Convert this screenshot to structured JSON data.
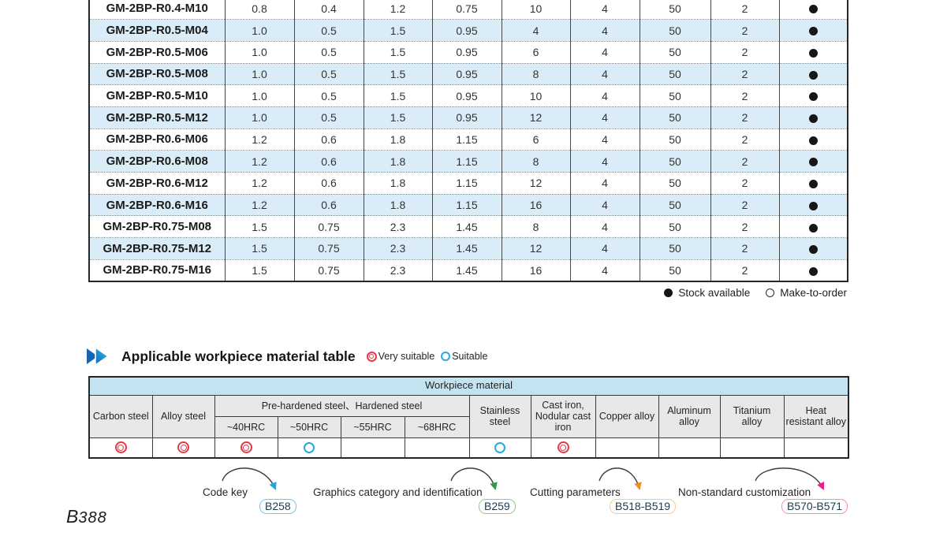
{
  "colors": {
    "very_suitable": "#e73948",
    "suitable": "#29a9e0",
    "row_alt": "#d9ecf7",
    "material_title_bg": "#c2e3ef",
    "material_head_bg": "#e8e8e9",
    "stock_dot": "#161616"
  },
  "spec_table": {
    "rows": [
      {
        "model": "GM-2BP-R0.4-M10",
        "values": [
          "0.8",
          "0.4",
          "1.2",
          "0.75",
          "10",
          "4",
          "50",
          "2"
        ],
        "stock": "available"
      },
      {
        "model": "GM-2BP-R0.5-M04",
        "values": [
          "1.0",
          "0.5",
          "1.5",
          "0.95",
          "4",
          "4",
          "50",
          "2"
        ],
        "stock": "available"
      },
      {
        "model": "GM-2BP-R0.5-M06",
        "values": [
          "1.0",
          "0.5",
          "1.5",
          "0.95",
          "6",
          "4",
          "50",
          "2"
        ],
        "stock": "available"
      },
      {
        "model": "GM-2BP-R0.5-M08",
        "values": [
          "1.0",
          "0.5",
          "1.5",
          "0.95",
          "8",
          "4",
          "50",
          "2"
        ],
        "stock": "available"
      },
      {
        "model": "GM-2BP-R0.5-M10",
        "values": [
          "1.0",
          "0.5",
          "1.5",
          "0.95",
          "10",
          "4",
          "50",
          "2"
        ],
        "stock": "available"
      },
      {
        "model": "GM-2BP-R0.5-M12",
        "values": [
          "1.0",
          "0.5",
          "1.5",
          "0.95",
          "12",
          "4",
          "50",
          "2"
        ],
        "stock": "available"
      },
      {
        "model": "GM-2BP-R0.6-M06",
        "values": [
          "1.2",
          "0.6",
          "1.8",
          "1.15",
          "6",
          "4",
          "50",
          "2"
        ],
        "stock": "available"
      },
      {
        "model": "GM-2BP-R0.6-M08",
        "values": [
          "1.2",
          "0.6",
          "1.8",
          "1.15",
          "8",
          "4",
          "50",
          "2"
        ],
        "stock": "available"
      },
      {
        "model": "GM-2BP-R0.6-M12",
        "values": [
          "1.2",
          "0.6",
          "1.8",
          "1.15",
          "12",
          "4",
          "50",
          "2"
        ],
        "stock": "available"
      },
      {
        "model": "GM-2BP-R0.6-M16",
        "values": [
          "1.2",
          "0.6",
          "1.8",
          "1.15",
          "16",
          "4",
          "50",
          "2"
        ],
        "stock": "available"
      },
      {
        "model": "GM-2BP-R0.75-M08",
        "values": [
          "1.5",
          "0.75",
          "2.3",
          "1.45",
          "8",
          "4",
          "50",
          "2"
        ],
        "stock": "available"
      },
      {
        "model": "GM-2BP-R0.75-M12",
        "values": [
          "1.5",
          "0.75",
          "2.3",
          "1.45",
          "12",
          "4",
          "50",
          "2"
        ],
        "stock": "available"
      },
      {
        "model": "GM-2BP-R0.75-M16",
        "values": [
          "1.5",
          "0.75",
          "2.3",
          "1.45",
          "16",
          "4",
          "50",
          "2"
        ],
        "stock": "available"
      }
    ],
    "legend": {
      "stock_available": "Stock available",
      "make_to_order": "Make-to-order"
    }
  },
  "material_section": {
    "title": "Applicable workpiece material table",
    "legend_very_suitable": "Very suitable",
    "legend_suitable": "Suitable"
  },
  "material_table": {
    "title": "Workpiece material",
    "col_carbon": "Carbon steel",
    "col_alloy": "Alloy steel",
    "group_prehardened": "Pre-hardened steel、Hardened steel",
    "sub_hrc": [
      "~40HRC",
      "~50HRC",
      "~55HRC",
      "~68HRC"
    ],
    "col_stainless": "Stainless steel",
    "col_castiron": "Cast iron, Nodular cast iron",
    "col_copper": "Copper alloy",
    "col_aluminum": "Aluminum alloy",
    "col_titanium": "Titanium alloy",
    "col_heat": "Heat resistant alloy",
    "ratings": [
      "very-suitable",
      "very-suitable",
      "very-suitable",
      "suitable",
      "",
      "",
      "suitable",
      "very-suitable",
      "",
      "",
      "",
      ""
    ]
  },
  "footer_links": [
    {
      "label": "Code key",
      "badge": "B258",
      "badge_color": "#70c9e9",
      "arrow_color": "#1ba7e0"
    },
    {
      "label": "Graphics category and identification",
      "badge": "B259",
      "badge_color": "#8fcd85",
      "arrow_color": "#2e9e3f"
    },
    {
      "label": "Cutting parameters",
      "badge": "B518-B519",
      "badge_color": "#f6cc92",
      "arrow_color": "#f2901d"
    },
    {
      "label": "Non-standard customization",
      "badge": "B570-B571",
      "badge_color": "#f28fbe",
      "arrow_color": "#ea1d8d"
    }
  ],
  "page": {
    "label_prefix": "B",
    "label_number": "388"
  }
}
